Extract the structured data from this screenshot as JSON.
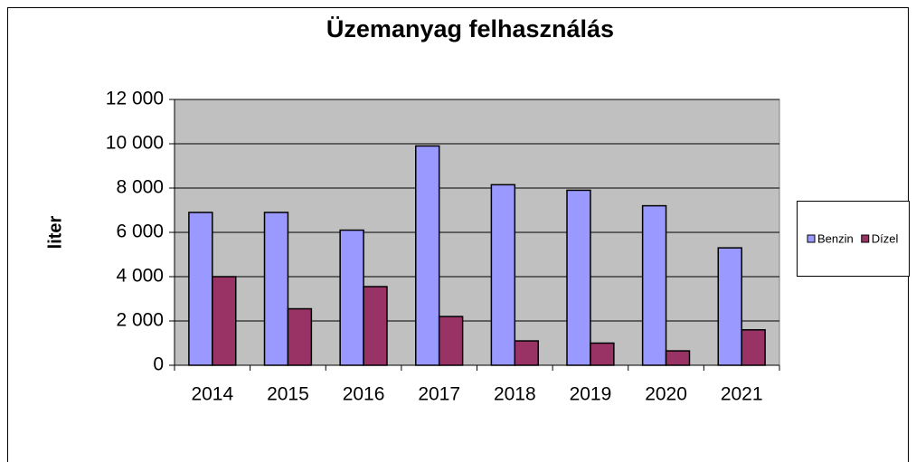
{
  "chart_data": {
    "type": "bar",
    "title": "Üzemanyag felhasználás",
    "y_label": "liter",
    "categories": [
      "2014",
      "2015",
      "2016",
      "2017",
      "2018",
      "2019",
      "2020",
      "2021"
    ],
    "series": [
      {
        "name": "Benzin",
        "color": "#9999ff",
        "values": [
          6900,
          6900,
          6100,
          9900,
          8150,
          7900,
          7200,
          5300
        ]
      },
      {
        "name": "Dízel",
        "color": "#993366",
        "values": [
          4000,
          2550,
          3550,
          2200,
          1100,
          1000,
          650,
          1600
        ]
      }
    ],
    "ylim": [
      0,
      12000
    ],
    "yticks": [
      0,
      {
        "value": 2000,
        "label": "2 000"
      },
      {
        "value": 4000,
        "label": "4 000"
      },
      {
        "value": 6000,
        "label": "6 000"
      },
      {
        "value": 8000,
        "label": "8 000"
      },
      {
        "value": 10000,
        "label": "10 000"
      },
      {
        "value": 12000,
        "label": "12 000"
      }
    ],
    "grid": true,
    "legend": "right",
    "plot_background": "#c0c0c0"
  }
}
